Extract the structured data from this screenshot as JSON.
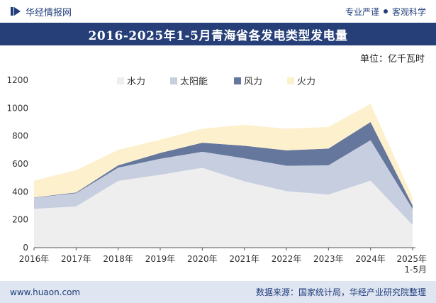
{
  "header": {
    "brand": "华经情报网",
    "tagline_left": "专业严谨",
    "tagline_right": "客观科学"
  },
  "title": "2016-2025年1-5月青海省各发电类型发电量",
  "unit": "单位：亿千瓦时",
  "footer": {
    "site": "www.huaon.com",
    "source": "数据来源：国家统计局，华经产业研究院整理"
  },
  "colors": {
    "header_bg": "#263f78",
    "footer_bg": "#dfe5f1",
    "hydro": "#eeeeee",
    "solar": "#c7cee0",
    "wind": "#66779d",
    "thermal": "#fdf0cd"
  },
  "chart_data": {
    "type": "area",
    "stacked": true,
    "categories": [
      "2016年",
      "2017年",
      "2018年",
      "2019年",
      "2020年",
      "2021年",
      "2022年",
      "2023年",
      "2024年",
      "2025年\n1-5月"
    ],
    "series": [
      {
        "name": "水力",
        "color": "#eeeeee",
        "values": [
          278,
          295,
          478,
          522,
          572,
          475,
          405,
          380,
          480,
          162
        ]
      },
      {
        "name": "太阳能",
        "color": "#c7cee0",
        "values": [
          80,
          95,
          95,
          115,
          115,
          165,
          182,
          210,
          290,
          115
        ]
      },
      {
        "name": "风力",
        "color": "#66779d",
        "values": [
          2,
          5,
          17,
          42,
          65,
          90,
          110,
          120,
          130,
          25
        ]
      },
      {
        "name": "火力",
        "color": "#fdf0cd",
        "values": [
          120,
          160,
          110,
          95,
          100,
          150,
          155,
          155,
          130,
          58
        ]
      }
    ],
    "ylim": [
      0,
      1200
    ],
    "yticks": [
      0,
      200,
      400,
      600,
      800,
      1000,
      1200
    ],
    "grid": false,
    "legend_position": "top-center"
  }
}
